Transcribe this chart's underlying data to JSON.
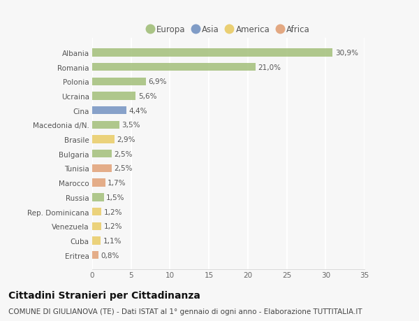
{
  "categories": [
    "Albania",
    "Romania",
    "Polonia",
    "Ucraina",
    "Cina",
    "Macedonia d/N.",
    "Brasile",
    "Bulgaria",
    "Tunisia",
    "Marocco",
    "Russia",
    "Rep. Dominicana",
    "Venezuela",
    "Cuba",
    "Eritrea"
  ],
  "values": [
    30.9,
    21.0,
    6.9,
    5.6,
    4.4,
    3.5,
    2.9,
    2.5,
    2.5,
    1.7,
    1.5,
    1.2,
    1.2,
    1.1,
    0.8
  ],
  "labels": [
    "30,9%",
    "21,0%",
    "6,9%",
    "5,6%",
    "4,4%",
    "3,5%",
    "2,9%",
    "2,5%",
    "2,5%",
    "1,7%",
    "1,5%",
    "1,2%",
    "1,2%",
    "1,1%",
    "0,8%"
  ],
  "continents": [
    "Europa",
    "Europa",
    "Europa",
    "Europa",
    "Asia",
    "Europa",
    "America",
    "Europa",
    "Africa",
    "Africa",
    "Europa",
    "America",
    "America",
    "America",
    "Africa"
  ],
  "colors": {
    "Europa": "#9DBB72",
    "Asia": "#6B8CBE",
    "America": "#E8C95C",
    "Africa": "#E09B6E"
  },
  "legend_order": [
    "Europa",
    "Asia",
    "America",
    "Africa"
  ],
  "xlim": [
    0,
    35
  ],
  "xticks": [
    0,
    5,
    10,
    15,
    20,
    25,
    30,
    35
  ],
  "title": "Cittadini Stranieri per Cittadinanza",
  "subtitle": "COMUNE DI GIULIANOVA (TE) - Dati ISTAT al 1° gennaio di ogni anno - Elaborazione TUTTITALIA.IT",
  "background_color": "#f7f7f7",
  "grid_color": "#ffffff",
  "bar_height": 0.55,
  "label_fontsize": 7.5,
  "tick_fontsize": 7.5,
  "title_fontsize": 10,
  "subtitle_fontsize": 7.5
}
